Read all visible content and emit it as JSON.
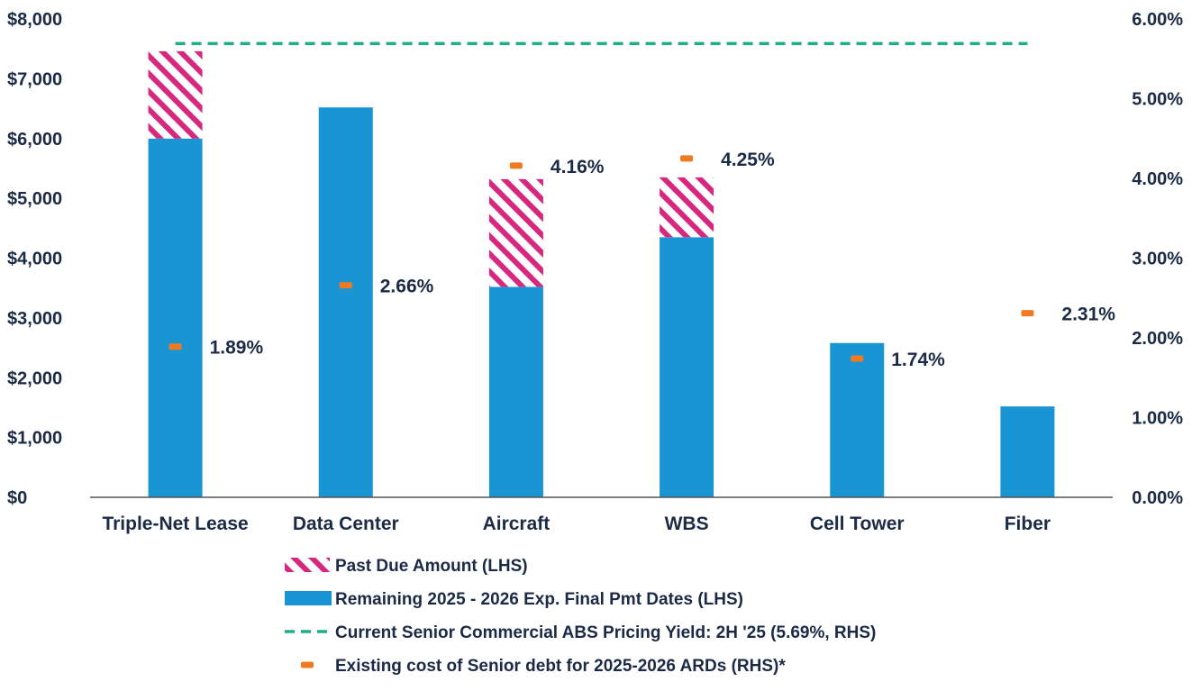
{
  "chart_data": {
    "type": "bar",
    "stacked": true,
    "categories": [
      "Triple-Net Lease",
      "Data Center",
      "Aircraft",
      "WBS",
      "Cell Tower",
      "Fiber"
    ],
    "series": [
      {
        "name": "Remaining 2025 - 2026 Exp. Final Pmt Dates (LHS)",
        "axis": "left",
        "style": "solid",
        "color": "#1a95d3",
        "values": [
          6000,
          6520,
          3520,
          4350,
          2580,
          1520
        ]
      },
      {
        "name": "Past Due Amount (LHS)",
        "axis": "left",
        "style": "hatched",
        "color": "#d6287e",
        "values": [
          1460,
          0,
          1800,
          1000,
          0,
          0
        ]
      },
      {
        "name": "Existing cost of Senior debt for 2025-2026 ARDs (RHS)*",
        "axis": "right",
        "style": "marker",
        "color": "#f07a22",
        "values": [
          1.89,
          2.66,
          4.16,
          4.25,
          1.74,
          2.31
        ],
        "labels": [
          "1.89%",
          "2.66%",
          "4.16%",
          "4.25%",
          "1.74%",
          "2.31%"
        ]
      },
      {
        "name": "Current Senior Commercial ABS Pricing Yield: 2H '25 (5.69%, RHS)",
        "axis": "right",
        "style": "dashed-line",
        "color": "#1fae8a",
        "value": 5.69
      }
    ],
    "yleft": {
      "min": 0,
      "max": 8000,
      "step": 1000,
      "ticks": [
        "$0",
        "$1,000",
        "$2,000",
        "$3,000",
        "$4,000",
        "$5,000",
        "$6,000",
        "$7,000",
        "$8,000"
      ]
    },
    "yright": {
      "min": 0,
      "max": 6,
      "step": 1,
      "ticks": [
        "0.00%",
        "1.00%",
        "2.00%",
        "3.00%",
        "4.00%",
        "5.00%",
        "6.00%"
      ]
    },
    "legend_order": [
      1,
      0,
      3,
      2
    ],
    "legend_position": "bottom-center",
    "grid": false
  }
}
